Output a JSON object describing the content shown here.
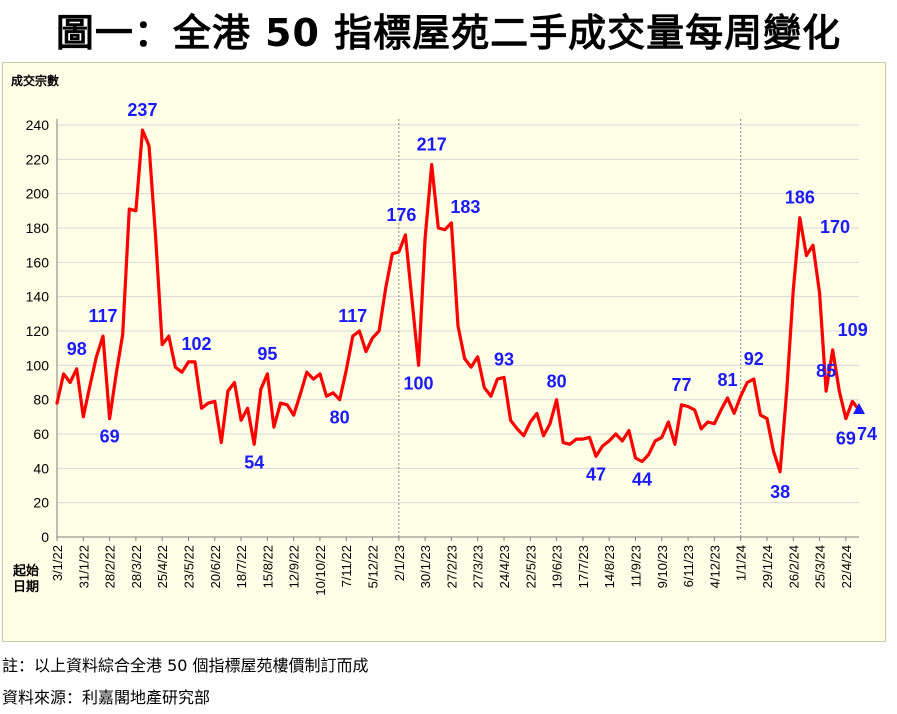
{
  "title": "圖一：全港 50 指標屋苑二手成交量每周變化",
  "notes": {
    "note1": "註：以上資料綜合全港 50 個指標屋苑樓價制訂而成",
    "note2": "資料來源：利嘉閣地產研究部"
  },
  "chart_data": {
    "type": "line",
    "ylabel": "成交宗數",
    "xlabel": "起始\n日期",
    "ylim": [
      0,
      240
    ],
    "yticks": [
      0,
      20,
      40,
      60,
      80,
      100,
      120,
      140,
      160,
      180,
      200,
      220,
      240
    ],
    "xtick_labels": [
      "3/1/22",
      "31/1/22",
      "28/2/22",
      "28/3/22",
      "25/4/22",
      "23/5/22",
      "20/6/22",
      "18/7/22",
      "15/8/22",
      "12/9/22",
      "10/10/22",
      "7/11/22",
      "5/12/22",
      "2/1/23",
      "30/1/23",
      "27/2/23",
      "27/3/23",
      "24/4/23",
      "22/5/23",
      "19/6/23",
      "17/7/23",
      "14/8/23",
      "11/9/23",
      "9/10/23",
      "6/11/23",
      "4/12/23",
      "1/1/24",
      "29/1/24",
      "26/2/24",
      "25/3/24",
      "22/4/24"
    ],
    "grid": "horizontal",
    "line_color": "#ff0000",
    "label_color": "#1a1aff",
    "series": [
      {
        "values": [
          78,
          95,
          90,
          98,
          70,
          88,
          105,
          117,
          69,
          95,
          118,
          191,
          190,
          237,
          228,
          175,
          112,
          117,
          99,
          96,
          102,
          102,
          75,
          78,
          79,
          55,
          85,
          90,
          68,
          75,
          54,
          86,
          95,
          64,
          78,
          77,
          71,
          83,
          96,
          92,
          95,
          82,
          84,
          80,
          97,
          117,
          120,
          108,
          116,
          120,
          145,
          165,
          166,
          176,
          138,
          100,
          174,
          217,
          180,
          179,
          183,
          123,
          104,
          99,
          105,
          87,
          82,
          92,
          93,
          68,
          63,
          59,
          67,
          72,
          59,
          66,
          80,
          55,
          54,
          57,
          57,
          58,
          47,
          53,
          56,
          60,
          56,
          62,
          46,
          44,
          48,
          56,
          58,
          67,
          54,
          77,
          76,
          74,
          63,
          67,
          66,
          74,
          81,
          72,
          82,
          90,
          92,
          71,
          69,
          50,
          38,
          85,
          144,
          186,
          164,
          170,
          142,
          85,
          109,
          85,
          69,
          79,
          74
        ]
      }
    ],
    "data_labels": [
      {
        "index": 3,
        "value": 98
      },
      {
        "index": 7,
        "value": 117
      },
      {
        "index": 8,
        "value": 69
      },
      {
        "index": 13,
        "value": 237
      },
      {
        "index": 20,
        "value": 102
      },
      {
        "index": 30,
        "value": 54
      },
      {
        "index": 32,
        "value": 95
      },
      {
        "index": 43,
        "value": 80
      },
      {
        "index": 45,
        "value": 117
      },
      {
        "index": 53,
        "value": 176
      },
      {
        "index": 55,
        "value": 100
      },
      {
        "index": 57,
        "value": 217
      },
      {
        "index": 60,
        "value": 183
      },
      {
        "index": 68,
        "value": 93
      },
      {
        "index": 76,
        "value": 80
      },
      {
        "index": 82,
        "value": 47
      },
      {
        "index": 89,
        "value": 44
      },
      {
        "index": 95,
        "value": 77
      },
      {
        "index": 102,
        "value": 81
      },
      {
        "index": 106,
        "value": 92
      },
      {
        "index": 110,
        "value": 38
      },
      {
        "index": 113,
        "value": 186
      },
      {
        "index": 115,
        "value": 170
      },
      {
        "index": 117,
        "value": 85
      },
      {
        "index": 118,
        "value": 109
      },
      {
        "index": 120,
        "value": 69
      },
      {
        "index": 122,
        "value": 74
      }
    ],
    "year_separators": [
      "2/1/23",
      "1/1/24"
    ],
    "last_point_marker": "triangle"
  }
}
